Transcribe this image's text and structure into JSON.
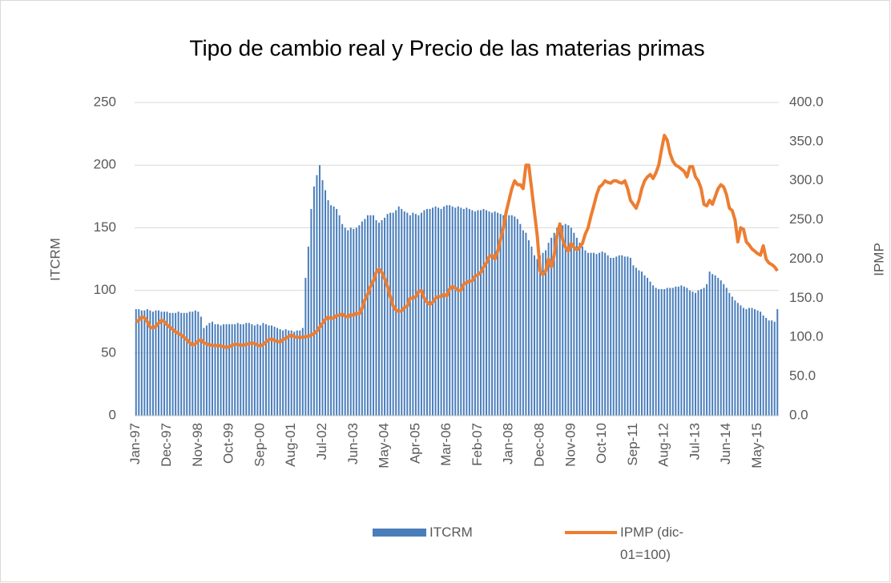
{
  "chart_data": {
    "type": "bar-line",
    "title": "Tipo de cambio real y Precio de las materias primas",
    "ylabel": "ITCRM",
    "y2label": "IPMP",
    "categories": [
      "Jan-97",
      null,
      null,
      null,
      null,
      null,
      null,
      null,
      null,
      null,
      null,
      "Dec-97",
      null,
      null,
      null,
      null,
      null,
      null,
      null,
      null,
      null,
      null,
      "Nov-98",
      null,
      null,
      null,
      null,
      null,
      null,
      null,
      null,
      null,
      null,
      "Oct-99",
      null,
      null,
      null,
      null,
      null,
      null,
      null,
      null,
      null,
      null,
      "Sep-00",
      null,
      null,
      null,
      null,
      null,
      null,
      null,
      null,
      null,
      null,
      "Aug-01",
      null,
      null,
      null,
      null,
      null,
      null,
      null,
      null,
      null,
      null,
      "Jul-02",
      null,
      null,
      null,
      null,
      null,
      null,
      null,
      null,
      null,
      null,
      "Jun-03",
      null,
      null,
      null,
      null,
      null,
      null,
      null,
      null,
      null,
      null,
      "May-04",
      null,
      null,
      null,
      null,
      null,
      null,
      null,
      null,
      null,
      null,
      "Apr-05",
      null,
      null,
      null,
      null,
      null,
      null,
      null,
      null,
      null,
      null,
      "Mar-06",
      null,
      null,
      null,
      null,
      null,
      null,
      null,
      null,
      null,
      null,
      "Feb-07",
      null,
      null,
      null,
      null,
      null,
      null,
      null,
      null,
      null,
      null,
      "Jan-08",
      null,
      null,
      null,
      null,
      null,
      null,
      null,
      null,
      null,
      null,
      "Dec-08",
      null,
      null,
      null,
      null,
      null,
      null,
      null,
      null,
      null,
      null,
      "Nov-09",
      null,
      null,
      null,
      null,
      null,
      null,
      null,
      null,
      null,
      null,
      "Oct-10",
      null,
      null,
      null,
      null,
      null,
      null,
      null,
      null,
      null,
      null,
      "Sep-11",
      null,
      null,
      null,
      null,
      null,
      null,
      null,
      null,
      null,
      null,
      "Aug-12",
      null,
      null,
      null,
      null,
      null,
      null,
      null,
      null,
      null,
      null,
      "Jul-13",
      null,
      null,
      null,
      null,
      null,
      null,
      null,
      null,
      null,
      null,
      "Jun-14",
      null,
      null,
      null,
      null,
      null,
      null,
      null,
      null,
      null,
      null,
      "May-15",
      null,
      null,
      null,
      null,
      null,
      null,
      null
    ],
    "series": [
      {
        "name": "ITCRM",
        "color": "#4a7ebb",
        "values": [
          85,
          85,
          84,
          84,
          85,
          84,
          83,
          84,
          84,
          83,
          83,
          83,
          82,
          82,
          82,
          83,
          82,
          82,
          82,
          83,
          83,
          84,
          83,
          79,
          70,
          72,
          74,
          75,
          73,
          73,
          72,
          73,
          73,
          73,
          73,
          73,
          74,
          73,
          73,
          74,
          74,
          73,
          72,
          73,
          72,
          74,
          73,
          72,
          72,
          71,
          70,
          69,
          68,
          69,
          68,
          68,
          67,
          68,
          68,
          70,
          110,
          135,
          165,
          183,
          192,
          200,
          188,
          180,
          172,
          168,
          167,
          165,
          160,
          153,
          150,
          148,
          150,
          149,
          150,
          152,
          155,
          157,
          160,
          160,
          160,
          156,
          154,
          156,
          158,
          161,
          162,
          162,
          164,
          167,
          165,
          163,
          162,
          160,
          162,
          161,
          160,
          162,
          164,
          165,
          165,
          166,
          167,
          166,
          165,
          167,
          168,
          168,
          167,
          166,
          167,
          166,
          165,
          166,
          165,
          164,
          163,
          164,
          164,
          165,
          164,
          163,
          162,
          163,
          162,
          161,
          160,
          161,
          160,
          160,
          159,
          157,
          153,
          148,
          146,
          140,
          135,
          128,
          125,
          128,
          130,
          132,
          138,
          142,
          146,
          150,
          152,
          152,
          153,
          152,
          150,
          146,
          142,
          138,
          135,
          132,
          130,
          130,
          130,
          129,
          130,
          131,
          130,
          128,
          126,
          126,
          127,
          128,
          128,
          127,
          127,
          126,
          120,
          118,
          116,
          115,
          112,
          110,
          107,
          104,
          102,
          101,
          101,
          101,
          102,
          102,
          102,
          103,
          103,
          104,
          103,
          102,
          100,
          99,
          98,
          100,
          101,
          102,
          105,
          115,
          113,
          112,
          110,
          108,
          105,
          102,
          98,
          95,
          92,
          90,
          88,
          86,
          85,
          86,
          86,
          85,
          84,
          83,
          80,
          78,
          76,
          76,
          75,
          85
        ]
      },
      {
        "name": "IPMP (dic-01=100)",
        "color": "#ed7d31",
        "axis": "y2",
        "values": [
          120,
          122,
          126,
          125,
          120,
          113,
          112,
          114,
          118,
          122,
          120,
          116,
          113,
          110,
          107,
          105,
          103,
          100,
          97,
          93,
          90,
          92,
          95,
          97,
          93,
          92,
          90,
          90,
          89,
          90,
          89,
          88,
          87,
          88,
          90,
          91,
          91,
          90,
          90,
          91,
          92,
          93,
          92,
          90,
          89,
          91,
          94,
          97,
          98,
          96,
          95,
          94,
          97,
          99,
          101,
          103,
          101,
          100,
          100,
          100,
          101,
          101,
          103,
          105,
          108,
          113,
          118,
          123,
          126,
          124,
          125,
          128,
          128,
          130,
          127,
          126,
          129,
          128,
          131,
          130,
          137,
          148,
          155,
          165,
          172,
          183,
          187,
          183,
          175,
          165,
          152,
          140,
          135,
          133,
          134,
          138,
          140,
          150,
          150,
          152,
          158,
          160,
          150,
          145,
          142,
          145,
          150,
          152,
          152,
          155,
          153,
          162,
          165,
          163,
          160,
          160,
          168,
          170,
          172,
          172,
          178,
          180,
          183,
          190,
          195,
          203,
          205,
          200,
          210,
          225,
          240,
          260,
          275,
          290,
          300,
          295,
          295,
          290,
          320,
          320,
          290,
          260,
          230,
          185,
          180,
          185,
          200,
          190,
          205,
          230,
          245,
          225,
          215,
          210,
          220,
          215,
          212,
          215,
          220,
          232,
          240,
          255,
          268,
          282,
          292,
          295,
          300,
          298,
          297,
          300,
          300,
          298,
          297,
          300,
          290,
          275,
          270,
          265,
          275,
          290,
          300,
          305,
          308,
          303,
          310,
          320,
          340,
          358,
          352,
          335,
          325,
          320,
          318,
          315,
          312,
          305,
          318,
          318,
          305,
          300,
          290,
          270,
          268,
          275,
          270,
          280,
          290,
          295,
          292,
          282,
          265,
          262,
          250,
          222,
          240,
          238,
          222,
          218,
          213,
          210,
          207,
          205,
          217,
          200,
          195,
          193,
          190,
          185
        ]
      }
    ],
    "ylim": [
      0,
      250
    ],
    "yticks": [
      0,
      50,
      100,
      150,
      200,
      250
    ],
    "y2lim": [
      0,
      400
    ],
    "y2ticks": [
      {
        "value": 0,
        "label": "0.0"
      },
      {
        "value": 50,
        "label": "50.0"
      },
      {
        "value": 100,
        "label": "100.0"
      },
      {
        "value": 150,
        "label": "150.0"
      },
      {
        "value": 200,
        "label": "200.0"
      },
      {
        "value": 250,
        "label": "250.0"
      },
      {
        "value": 300,
        "label": "300.0"
      },
      {
        "value": 350,
        "label": "350.0"
      },
      {
        "value": 400,
        "label": "400.0"
      }
    ],
    "grid": true,
    "legend": "bottom"
  }
}
